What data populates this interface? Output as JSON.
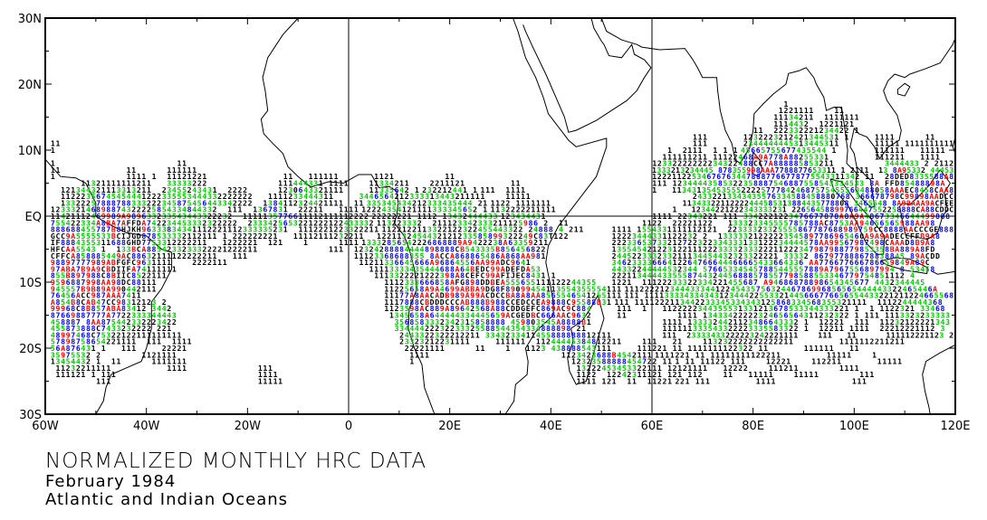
{
  "title": {
    "line1": "NORMALIZED MONTHLY HRC DATA",
    "line2": "February 1984",
    "line3": "Atlantic and Indian Oceans"
  },
  "chart_data": {
    "type": "text-grid-map",
    "x_range_lon": [
      -60,
      120
    ],
    "y_range_lat": [
      -30,
      30
    ],
    "x_ticks": [
      {
        "lon": -60,
        "label": "60W"
      },
      {
        "lon": -40,
        "label": "40W"
      },
      {
        "lon": -20,
        "label": "20W"
      },
      {
        "lon": 0,
        "label": "0"
      },
      {
        "lon": 20,
        "label": "20E"
      },
      {
        "lon": 40,
        "label": "40E"
      },
      {
        "lon": 60,
        "label": "60E"
      },
      {
        "lon": 80,
        "label": "80E"
      },
      {
        "lon": 100,
        "label": "100E"
      },
      {
        "lon": 120,
        "label": "120E"
      }
    ],
    "y_ticks": [
      {
        "lat": 30,
        "label": "30N"
      },
      {
        "lat": 20,
        "label": "20N"
      },
      {
        "lat": 10,
        "label": "10N"
      },
      {
        "lat": 0,
        "label": "EQ"
      },
      {
        "lat": -10,
        "label": "10S"
      },
      {
        "lat": -20,
        "label": "20S"
      },
      {
        "lat": -30,
        "label": "30S"
      }
    ],
    "reference_lines": {
      "lat": [
        0
      ],
      "lon": [
        0,
        60
      ]
    },
    "value_colors": {
      "low_1_2": "#000000",
      "mid_3_5": "#00cc00",
      "high_6_8": "#0000ff",
      "very_high_9_B": "#ff0000",
      "extreme_C_plus": "#000000"
    },
    "rows": [
      {
        "lat": 17,
        "segs": [
          [
            86,
            "1"
          ]
        ]
      },
      {
        "lat": 16,
        "segs": [
          [
            85,
            "1221111"
          ],
          [
            96,
            "11"
          ]
        ]
      },
      {
        "lat": 15,
        "segs": [
          [
            84,
            "11134211  1111111"
          ]
        ]
      },
      {
        "lat": 14,
        "segs": [
          [
            84,
            "1114432  1221121"
          ]
        ]
      },
      {
        "lat": 13,
        "segs": [
          [
            80,
            "11  222332221234422 1"
          ]
        ]
      },
      {
        "lat": 12,
        "segs": [
          [
            68,
            "111"
          ],
          [
            78,
            "1232223212421344531 1"
          ],
          [
            104,
            "1111"
          ],
          [
            114,
            "11"
          ]
        ]
      },
      {
        "lat": 11,
        "segs": [
          [
            -59,
            "11"
          ],
          [
            68,
            "111"
          ],
          [
            78,
            "2344444445313445311"
          ],
          [
            104,
            "11111"
          ],
          [
            110,
            "1111111111"
          ]
        ]
      },
      {
        "lat": 10,
        "segs": [
          [
            -59,
            "1"
          ],
          [
            63,
            "1  2111  1 1 1"
          ],
          [
            77,
            "45665755677435544 1"
          ],
          [
            104,
            "111111"
          ],
          [
            113,
            "11111"
          ]
        ]
      },
      {
        "lat": 9,
        "segs": [
          [
            62,
            "111111211 11122468A9A778A88255331"
          ],
          [
            104,
            "111211"
          ],
          [
            113,
            "1111"
          ]
        ]
      },
      {
        "lat": 8,
        "segs": [
          [
            -59,
            "1"
          ],
          [
            -34,
            "11"
          ],
          [
            60,
            "12332222222234322488CC7A888885853211"
          ],
          [
            106,
            "3444433 2 2112"
          ]
        ]
      },
      {
        "lat": 7,
        "segs": [
          [
            -59,
            "11"
          ],
          [
            -44,
            "11"
          ],
          [
            -36,
            "111111"
          ],
          [
            60,
            "1333213234445 878355998AAA7788877653311 1 2111  13 8A95332 44453"
          ]
        ]
      },
      {
        "lat": 6,
        "segs": [
          [
            -59,
            "1"
          ],
          [
            -44,
            "1111 1"
          ],
          [
            -36,
            "11121221"
          ],
          [
            -13,
            "11"
          ],
          [
            -8,
            "111111"
          ],
          [
            5,
            "1121"
          ],
          [
            19,
            "11"
          ],
          [
            60,
            "122211225346767634478887766778775543311342 11  28DED8335588A8"
          ]
        ]
      },
      {
        "lat": 5,
        "segs": [
          [
            -53,
            "11321111111211"
          ],
          [
            -36,
            "33333222"
          ],
          [
            -14,
            "111444331 1111"
          ],
          [
            4,
            "11334211"
          ],
          [
            16,
            "2211121"
          ],
          [
            32,
            "11"
          ],
          [
            60,
            "111 12344443585322358887546887558543334533 8A FFD85488898A"
          ]
        ]
      },
      {
        "lat": 4,
        "segs": [
          [
            -57,
            "121344321113313211"
          ],
          [
            -37,
            "23455243431"
          ],
          [
            -24,
            "2222"
          ],
          [
            -14,
            "1230643321111"
          ],
          [
            4,
            "11335642 1"
          ],
          [
            14,
            "232212441 1"
          ],
          [
            24,
            "111"
          ],
          [
            31,
            "1111"
          ],
          [
            60,
            "1   11343135453555222257778424687575455563488058AAAEC8458CAA8"
          ]
        ]
      },
      {
        "lat": 3,
        "segs": [
          [
            -57,
            "11222356745454441222335553444332222222"
          ],
          [
            -16,
            "1111233444311"
          ],
          [
            2,
            "3446564212333313443211111"
          ],
          [
            31,
            "11111"
          ],
          [
            68,
            "24332213343435576334588458880768 366678798C99898AADCC"
          ]
        ]
      },
      {
        "lat": 2,
        "segs": [
          [
            -57,
            "13322257888788333222345875456443342222"
          ],
          [
            -17,
            "1384112324421111  11"
          ],
          [
            2,
            "335345434212333435444 21"
          ],
          [
            24,
            "1122 1111111"
          ],
          [
            66,
            "11343322112222444585313884435778808 3465548 8A99AAA9ACFEE"
          ]
        ]
      },
      {
        "lat": 1,
        "segs": [
          [
            -59,
            "123332146898874322225854334844332  111  1367831  22211   1111"
          ],
          [
            1,
            "12224354121111333345652 1"
          ],
          [
            24,
            "1132222211111"
          ],
          [
            64,
            "1   12344221222343333231 22656458899766447552258888CA88CDDC"
          ]
        ]
      },
      {
        "lat": 0,
        "segs": [
          [
            -59,
            "11421112469989A989633233543443322232  1111135776611112111112222"
          ],
          [
            1,
            "22222221 1112 13432444433"
          ],
          [
            24,
            "123434431"
          ],
          [
            60,
            "1111 22343221 111 3342221223476677878A8A9A48673346644499888"
          ]
        ]
      },
      {
        "lat": -1,
        "segs": [
          [
            -59,
            "755422334A8BA7AFFDA742234453332322222  2333425653221222122433332"
          ],
          [
            0,
            "113223332  211123342333211125986 2  11"
          ],
          [
            56,
            "  1122  22221122   133323345555785788AC8753AA94656565988AA98"
          ]
        ]
      },
      {
        "lat": -2,
        "segs": [
          [
            -59,
            "888688455787B8HJKH96333834341112221112333335231  1112221223322211"
          ],
          [
            0,
            "1122122113322122322455443322 24888 4 211"
          ],
          [
            52,
            "1111 1554331111112121  22333323325555867787688989759CC8888AACCCGE888"
          ]
        ]
      },
      {
        "lat": -3,
        "segs": [
          [
            -59,
            "GCC9A5555533BCIJGD878533332112111 1 222222221   11112111232211"
          ],
          [
            0,
            "  1221132454432121233585899322249C83T122"
          ],
          [
            52,
            "12223444331122232 2  13333321222223545897786965460A9A9ADECCFFB9A8"
          ]
        ]
      },
      {
        "lat": -4,
        "segs": [
          [
            -59,
            "IF8884355311688GHD7753312222211   1222221  121    1      1111"
          ],
          [
            1,
            "13332856542226868889A9422238A63359211"
          ],
          [
            52,
            "22233653733212722322334333133122234444578AA99567987498CAAAD8B9A8"
          ]
        ]
      },
      {
        "lat": -5,
        "segs": [
          [
            -59,
            "HFCAA5543 1  133BCA8854233233322221222211              111"
          ],
          [
            1,
            "12324288884444898888CB543335B856456822"
          ],
          [
            52,
            "1355454212231221112223333233322211222347987988779853358BA889A8FD"
          ]
        ]
      },
      {
        "lat": -6,
        "segs": [
          [
            -59,
            "CFFCA858885449AC88632111122222211   111"
          ],
          [
            1,
            "11123368688355 8ACCA868865486A868AA981"
          ],
          [
            52,
            "244522333233211134454432323322221 33332 867977888678838845 89ACDD"
          ]
        ]
      },
      {
        "lat": -7,
        "segs": [
          [
            -59,
            "98897777989ABFGFC9631111    2222111"
          ],
          [
            2,
            "11211336645666A96864556AA99ADC9641"
          ],
          [
            52,
            "34623333666412264766644466665433664336 AA776677666786659849A89C"
          ]
        ]
      },
      {
        "lat": -8,
        "segs": [
          [
            -59,
            "97ABA7B9A9CBDIIFA74111111"
          ],
          [
            4,
            "11113333435444688A64BEDC99ADEFDA53"
          ],
          [
            52,
            "44332244444532344 576653345457885445557889A7967556897994 8 53458"
          ]
        ]
      },
      {
        "lat": -9,
        "segs": [
          [
            -59,
            "855B897988C8BIIC8522111"
          ],
          [
            5,
            "1113322221222398A8CEFC99AFIJEC8431 1"
          ],
          [
            52,
            "2221134444335558744324456888578557798588553346779754851112 4"
          ]
        ]
      },
      {
        "lat": -10,
        "segs": [
          [
            -59,
            "9596887998AA98DC88111"
          ],
          [
            7,
            "1112333666858AFG898DDBEA555655111122244355"
          ],
          [
            52,
            "1221  11122233322334221455687 A94686878898654345677 4432344445"
          ]
        ]
      },
      {
        "lat": -11,
        "segs": [
          [
            -59,
            "945557B9B89A990442111"
          ],
          [
            7,
            "11225658A9A4699ABBA9DG8F89099454113554355554111"
          ],
          [
            52,
            "1112222123444333441224543575632446786996856565444443322465446A"
          ]
        ]
      },
      {
        "lat": -12,
        "segs": [
          [
            -59,
            "76456ACC987AAA7411"
          ],
          [
            7,
            "11177A8AACADB989A99ACDCCBA8A8AA8565546541255111"
          ],
          [
            52,
            "111 11113333433434312344422553321445666776656554433221211224665568"
          ]
        ]
      },
      {
        "lat": -13,
        "segs": [
          [
            -59,
            "A854B8CAB47CC98312123 2"
          ],
          [
            7,
            "1117888CBDDDCCCAB888B988CCEDCCEA9888C95588B31"
          ],
          [
            52,
            "111 1111222113442233345334343125868334568355321111  1112244444368"
          ]
        ]
      },
      {
        "lat": -14,
        "segs": [
          [
            -59,
            "99968C8B857ABA83412 3442"
          ],
          [
            7,
            "1123598AC889A89642568A88CDDGEFC869AC9C884"
          ],
          [
            52,
            " 111  1   1122222344355531331213678533344333221 1  1 1122321 33468"
          ]
        ]
      },
      {
        "lat": -15,
        "segs": [
          [
            -59,
            "87669887777A7722333344443"
          ],
          [
            8,
            "1345658A644444334445659ACGEDBC666AAC9632"
          ],
          [
            52,
            " 11          1111 13433422222324656564311232322 1 111 1113323233333"
          ]
        ]
      },
      {
        "lat": -16,
        "segs": [
          [
            -59,
            "458887 8AA875442332223422"
          ],
          [
            9,
            "3568583332342315858888 459803545A8888B1"
          ],
          [
            62,
            "1111 1333324421123486643332 1  12221  111  11232122221343"
          ]
        ]
      },
      {
        "lat": -17,
        "segs": [
          [
            -59,
            "455873888C7433232222 221"
          ],
          [
            9,
            "33444422232233325588544354334888898 21"
          ],
          [
            62,
            "111111333543322223335583322 1  12211 1111  22212221112 3"
          ]
        ]
      },
      {
        "lat": -18,
        "segs": [
          [
            -59,
            "48997468C75322122111111111"
          ],
          [
            10,
            "2443322322212211 3343233411455888888812111"
          ],
          [
            62,
            "111  23333433222223242221111    111   11      111112221123 2"
          ]
        ]
      },
      {
        "lat": -19,
        "segs": [
          [
            -59,
            "57898758654221111  111  1111"
          ],
          [
            10,
            "23323212231111     111111  11244445384812211"
          ],
          [
            58,
            "111   21    113232222222222211         1111112211211"
          ]
        ]
      },
      {
        "lat": -20,
        "segs": [
          [
            -59,
            "56A876431 1   111     22221"
          ],
          [
            11,
            "22221111      11    1   1123 438888543111"
          ],
          [
            57,
            "111221 11 1111111122322 11       111111   11"
          ]
        ]
      },
      {
        "lat": -21,
        "segs": [
          [
            -59,
            "35975532 2        1121111"
          ],
          [
            12,
            "1111"
          ],
          [
            42,
            "1123423688B4542111"
          ],
          [
            57,
            "1111221 11 11111111122211         11111    1"
          ]
        ]
      },
      {
        "lat": -22,
        "segs": [
          [
            -59,
            "13454432 1  11      1111111"
          ],
          [
            12,
            "1"
          ],
          [
            44,
            "12323588888454722 11"
          ],
          [
            57,
            "1 11 11122 111    12221    112211       11111"
          ]
        ]
      },
      {
        "lat": -23,
        "segs": [
          [
            -58,
            "11232211111           1111"
          ],
          [
            -18,
            "111"
          ],
          [
            45,
            "13222453453322111"
          ],
          [
            63,
            "12121111   12222    111211        1111"
          ]
        ]
      },
      {
        "lat": -24,
        "segs": [
          [
            -58,
            "111121 1 111"
          ],
          [
            -18,
            "1111"
          ],
          [
            45,
            "1122  12242311121"
          ],
          [
            63,
            "121 112    11   11111    11111        111"
          ]
        ]
      },
      {
        "lat": -25,
        "segs": [
          [
            -50,
            "111"
          ],
          [
            -18,
            "11111"
          ],
          [
            45,
            "1111 121  11  11221"
          ],
          [
            63,
            "221 111         1111               111"
          ]
        ]
      }
    ]
  }
}
